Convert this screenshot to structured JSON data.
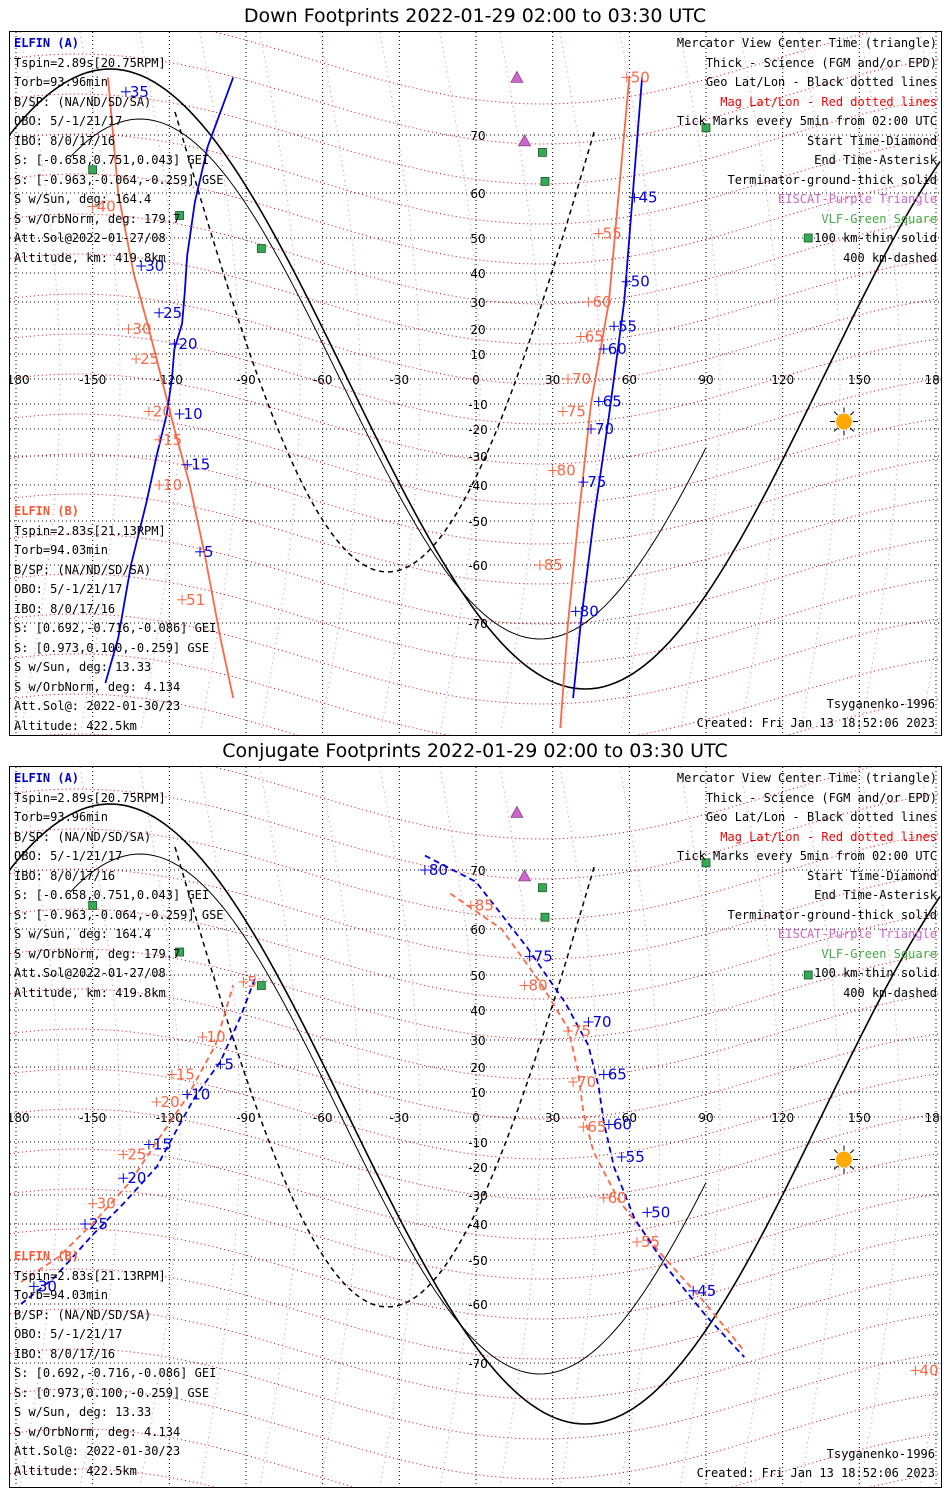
{
  "panels": [
    {
      "title": "Down Footprints 2022-01-29 02:00 to 03:30 UTC",
      "kind": "down",
      "info_a": {
        "header": "ELFIN (A)",
        "lines": [
          "Tspin=2.89s[20.75RPM]",
          "Torb=93.96min",
          "B/SP: (NA/ND/SD/SA)",
          "OBO: 5/-1/21/17",
          "IBO: 8/0/17/16",
          "S: [-0.658,0.751,0.043] GEI",
          "S: [-0.963,-0.064,-0.259] GSE",
          "S w/Sun, deg: 164.4",
          "S w/OrbNorm, deg: 179.7",
          "Att.Sol@2022-01-27/08",
          "Altitude, km: 419.8km"
        ]
      },
      "info_b": {
        "header": "ELFIN (B)",
        "lines": [
          "Tspin=2.83s[21.13RPM]",
          "Torb=94.03min",
          "B/SP: (NA/ND/SD/SA)",
          "OBO: 5/-1/21/17",
          "IBO: 8/0/17/16",
          "S: [0.692,-0.716,-0.086] GEI",
          "S: [0.973,0.100,-0.259] GSE",
          "S w/Sun, deg: 13.33",
          "S w/OrbNorm, deg: 4.134",
          "Att.Sol@: 2022-01-30/23",
          "Altitude: 422.5km"
        ]
      },
      "legend": [
        {
          "text": "Mercator View Center Time (triangle)",
          "color": "#000000"
        },
        {
          "text": "Thick - Science (FGM and/or EPD)",
          "color": "#000000"
        },
        {
          "text": "Geo Lat/Lon - Black dotted lines",
          "color": "#000000"
        },
        {
          "text": "Mag Lat/Lon - Red dotted lines",
          "color": "#ee0000"
        },
        {
          "text": "Tick Marks every 5min from 02:00 UTC",
          "color": "#000000"
        },
        {
          "text": "Start Time-Diamond",
          "color": "#000000"
        },
        {
          "text": "End Time-Asterisk",
          "color": "#000000"
        },
        {
          "text": "Terminator-ground-thick solid",
          "color": "#000000"
        },
        {
          "text": "EISCAT-Purple Triangle",
          "color": "#cc66cc"
        },
        {
          "text": "VLF-Green Square",
          "color": "#44aa44"
        },
        {
          "text": "100 km-thin solid",
          "color": "#000000"
        },
        {
          "text": "400 km-dashed",
          "color": "#000000"
        }
      ],
      "model": "Tsyganenko-1996",
      "created": "Created: Fri Jan 13 18:52:06 2023",
      "track_a": {
        "lon": [
          -145,
          -140,
          -135,
          -129,
          -125,
          -121,
          -119,
          -118,
          -115,
          -114,
          -113,
          -110,
          -105,
          -95
        ],
        "lat": [
          -78,
          -72,
          -60,
          -45,
          -30,
          -14,
          0,
          12,
          22,
          33,
          45,
          58,
          68,
          78
        ],
        "ticks": [
          {
            "label": "5",
            "lon": -108,
            "lat": -57
          },
          {
            "label": "10",
            "lon": -116,
            "lat": -14
          },
          {
            "label": "15",
            "lon": -113,
            "lat": -33
          },
          {
            "label": "20",
            "lon": -118,
            "lat": 14
          },
          {
            "label": "25",
            "lon": -124,
            "lat": 26
          },
          {
            "label": "30",
            "lon": -131,
            "lat": 42
          },
          {
            "label": "35",
            "lon": -137,
            "lat": 76
          },
          {
            "label": "45",
            "lon": 62,
            "lat": 59
          },
          {
            "label": "50",
            "lon": 59,
            "lat": 37
          },
          {
            "label": "55",
            "lon": 54,
            "lat": 21
          },
          {
            "label": "60",
            "lon": 50,
            "lat": 12
          },
          {
            "label": "65",
            "lon": 48,
            "lat": -9
          },
          {
            "label": "70",
            "lon": 45,
            "lat": -20
          },
          {
            "label": "75",
            "lon": 42,
            "lat": -39
          },
          {
            "label": "80",
            "lon": 39,
            "lat": -68
          }
        ]
      },
      "track_b": {
        "lon": [
          -95,
          -100,
          -106,
          -112,
          -118,
          -123,
          -128,
          -134,
          -140,
          -144
        ],
        "lat": [
          -80,
          -72,
          -58,
          -40,
          -20,
          0,
          20,
          40,
          60,
          78
        ],
        "ticks": [
          {
            "label": "10",
            "lon": -124,
            "lat": -40
          },
          {
            "label": "15",
            "lon": -124,
            "lat": -24
          },
          {
            "label": "20",
            "lon": -128,
            "lat": -13
          },
          {
            "label": "25",
            "lon": -133,
            "lat": 8
          },
          {
            "label": "30",
            "lon": -136,
            "lat": 20
          },
          {
            "label": "40",
            "lon": -150,
            "lat": 57
          },
          {
            "label": "50",
            "lon": 59,
            "lat": 78
          },
          {
            "label": "55",
            "lon": 48,
            "lat": 51
          },
          {
            "label": "60",
            "lon": 44,
            "lat": 30
          },
          {
            "label": "65",
            "lon": 41,
            "lat": 17
          },
          {
            "label": "70",
            "lon": 36,
            "lat": 0
          },
          {
            "label": "75",
            "lon": 34,
            "lat": -13
          },
          {
            "label": "80",
            "lon": 30,
            "lat": -35
          },
          {
            "label": "85",
            "lon": 25,
            "lat": -60
          },
          {
            "label": "51",
            "lon": -115,
            "lat": -66
          }
        ]
      },
      "track_a_tail": {
        "lon": [
          38,
          41,
          46,
          52,
          58,
          65
        ],
        "lat": [
          -80,
          -70,
          -50,
          -15,
          30,
          78
        ]
      },
      "track_b_tail": {
        "lon": [
          33,
          36,
          40,
          45,
          52,
          60
        ],
        "lat": [
          -84,
          -70,
          -50,
          -10,
          30,
          78
        ]
      }
    },
    {
      "title": "Conjugate Footprints 2022-01-29 02:00 to 03:30 UTC",
      "kind": "conj",
      "info_a": {
        "header": "ELFIN (A)",
        "lines": [
          "Tspin=2.89s[20.75RPM]",
          "Torb=93.96min",
          "B/SP: (NA/ND/SD/SA)",
          "OBO: 5/-1/21/17",
          "IBO: 8/0/17/16",
          "S: [-0.658,0.751,0.043] GEI",
          "S: [-0.963,-0.064,-0.259] GSE",
          "S w/Sun, deg: 164.4",
          "S w/OrbNorm, deg: 179.7",
          "Att.Sol@2022-01-27/08",
          "Altitude, km: 419.8km"
        ]
      },
      "info_b": {
        "header": "ELFIN (B)",
        "lines": [
          "Tspin=2.83s[21.13RPM]",
          "Torb=94.03min",
          "B/SP: (NA/ND/SD/SA)",
          "OBO: 5/-1/21/17",
          "IBO: 8/0/17/16",
          "S: [0.692,-0.716,-0.086] GEI",
          "S: [0.973,0.100,-0.259] GSE",
          "S w/Sun, deg: 13.33",
          "S w/OrbNorm, deg: 4.134",
          "Att.Sol@: 2022-01-30/23",
          "Altitude: 422.5km"
        ]
      },
      "legend": [
        {
          "text": "Mercator View Center Time (triangle)",
          "color": "#000000"
        },
        {
          "text": "Thick - Science (FGM and/or EPD)",
          "color": "#000000"
        },
        {
          "text": "Geo Lat/Lon - Black dotted lines",
          "color": "#000000"
        },
        {
          "text": "Mag Lat/Lon - Red dotted lines",
          "color": "#ee0000"
        },
        {
          "text": "Tick Marks every 5min from 02:00 UTC",
          "color": "#000000"
        },
        {
          "text": "Start Time-Diamond",
          "color": "#000000"
        },
        {
          "text": "End Time-Asterisk",
          "color": "#000000"
        },
        {
          "text": "Terminator-ground-thick solid",
          "color": "#000000"
        },
        {
          "text": "EISCAT-Purple Triangle",
          "color": "#cc66cc"
        },
        {
          "text": "VLF-Green Square",
          "color": "#44aa44"
        },
        {
          "text": "100 km-thin solid",
          "color": "#000000"
        },
        {
          "text": "400 km-dashed",
          "color": "#000000"
        }
      ],
      "model": "Tsyganenko-1996",
      "created": "Created: Fri Jan 13 18:52:06 2023",
      "track_a": {
        "lon": [
          -178,
          -165,
          -150,
          -138,
          -125,
          -116,
          -110,
          -100,
          -92,
          -86
        ],
        "lat": [
          -60,
          -54,
          -43,
          -33,
          -20,
          -3,
          8,
          22,
          38,
          50
        ],
        "ticks": [
          {
            "label": "5",
            "lon": -100,
            "lat": 21
          },
          {
            "label": "10",
            "lon": -113,
            "lat": 9
          },
          {
            "label": "15",
            "lon": -128,
            "lat": -11
          },
          {
            "label": "20",
            "lon": -138,
            "lat": -24
          },
          {
            "label": "25",
            "lon": -153,
            "lat": -40
          },
          {
            "label": "30",
            "lon": -173,
            "lat": -56
          },
          {
            "label": "45",
            "lon": 85,
            "lat": -57
          },
          {
            "label": "50",
            "lon": 67,
            "lat": -36
          },
          {
            "label": "55",
            "lon": 57,
            "lat": -16
          },
          {
            "label": "60",
            "lon": 52,
            "lat": -3
          },
          {
            "label": "65",
            "lon": 50,
            "lat": 17
          },
          {
            "label": "70",
            "lon": 44,
            "lat": 36
          },
          {
            "label": "75",
            "lon": 21,
            "lat": 54
          },
          {
            "label": "80",
            "lon": -20,
            "lat": 70
          }
        ]
      },
      "track_b": {
        "lon": [
          -178,
          -163,
          -148,
          -135,
          -125,
          -113,
          -102,
          -95
        ],
        "lat": [
          -55,
          -49,
          -38,
          -25,
          -10,
          8,
          28,
          47
        ],
        "ticks": [
          {
            "label": "5",
            "lon": -91,
            "lat": 48
          },
          {
            "label": "10",
            "lon": -107,
            "lat": 31
          },
          {
            "label": "15",
            "lon": -119,
            "lat": 17
          },
          {
            "label": "20",
            "lon": -125,
            "lat": 6
          },
          {
            "label": "25",
            "lon": -138,
            "lat": -15
          },
          {
            "label": "30",
            "lon": -150,
            "lat": -33
          },
          {
            "label": "55",
            "lon": 63,
            "lat": -45
          },
          {
            "label": "60",
            "lon": 50,
            "lat": -31
          },
          {
            "label": "65",
            "lon": 42,
            "lat": -4
          },
          {
            "label": "70",
            "lon": 38,
            "lat": 14
          },
          {
            "label": "75",
            "lon": 36,
            "lat": 33
          },
          {
            "label": "80",
            "lon": 19,
            "lat": 47
          },
          {
            "label": "85",
            "lon": -2,
            "lat": 64
          },
          {
            "label": "40",
            "lon": 172,
            "lat": -71
          }
        ]
      },
      "track_a_tail": {
        "lon": [
          -20,
          0,
          20,
          35,
          44,
          48,
          50,
          54,
          62,
          75,
          90,
          105
        ],
        "lat": [
          72,
          68,
          56,
          42,
          28,
          12,
          -2,
          -20,
          -38,
          -52,
          -62,
          -69
        ]
      },
      "track_b_tail": {
        "lon": [
          -10,
          10,
          25,
          36,
          40,
          42,
          46,
          56,
          72,
          90,
          105
        ],
        "lat": [
          66,
          60,
          48,
          34,
          18,
          2,
          -14,
          -32,
          -48,
          -60,
          -68
        ]
      }
    }
  ],
  "map": {
    "lon_ticks": [
      "-180",
      "-150",
      "-120",
      "-90",
      "-60",
      "-30",
      "0",
      "30",
      "60",
      "90",
      "120",
      "150",
      "180"
    ],
    "lat_ticks": [
      "70",
      "60",
      "50",
      "40",
      "30",
      "20",
      "10",
      "0",
      "-10",
      "-20",
      "-30",
      "-40",
      "-50",
      "-60",
      "-70"
    ],
    "eiscat": [
      {
        "lon": 16,
        "lat": 78
      },
      {
        "lon": 19,
        "lat": 69
      }
    ],
    "vlf": [
      {
        "lon": -150,
        "lat": 64
      },
      {
        "lon": -116,
        "lat": 55
      },
      {
        "lon": -84,
        "lat": 47
      },
      {
        "lon": 26,
        "lat": 67
      },
      {
        "lon": 27,
        "lat": 62
      },
      {
        "lon": 90,
        "lat": 71
      },
      {
        "lon": 130,
        "lat": 50
      }
    ],
    "sun": {
      "lon": 144,
      "lat": -17
    },
    "colors": {
      "blue": "#0000dd",
      "red": "#ff6644",
      "purple": "#cc66cc",
      "green": "#33aa55",
      "sun": "#ffaa00",
      "grid": "#000000",
      "maggrid": "#ee0000"
    }
  }
}
